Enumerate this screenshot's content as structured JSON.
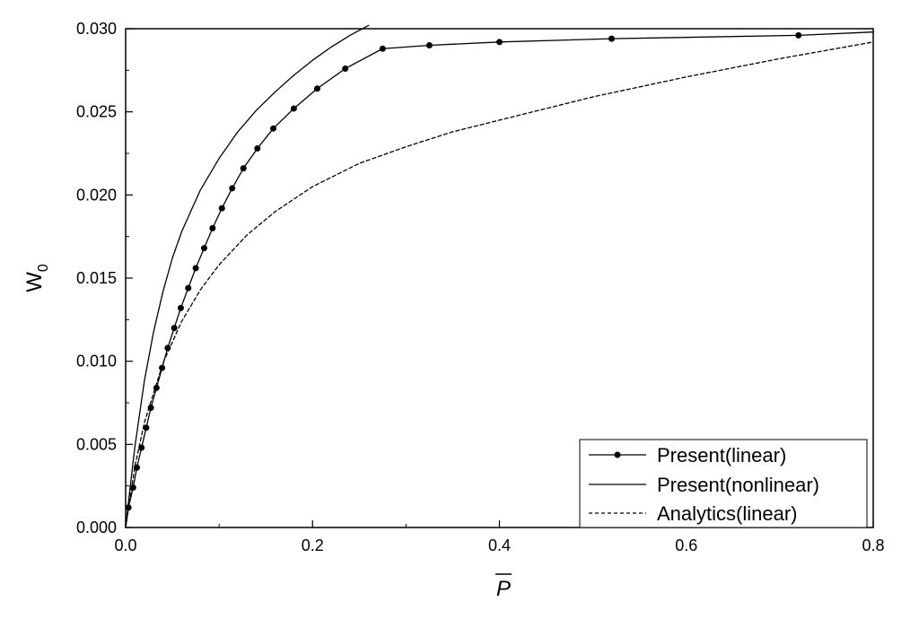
{
  "chart_data": {
    "type": "line",
    "title": "",
    "xlabel": "P",
    "xlabel_overbar": true,
    "ylabel": "W",
    "ylabel_subscript": "0",
    "xlim": [
      0.0,
      0.8
    ],
    "ylim": [
      0.0,
      0.03
    ],
    "x_ticks": [
      0.0,
      0.2,
      0.4,
      0.6,
      0.8
    ],
    "x_tick_labels": [
      "0.0",
      "0.2",
      "0.4",
      "0.6",
      "0.8"
    ],
    "y_ticks": [
      0.0,
      0.005,
      0.01,
      0.015,
      0.02,
      0.025,
      0.03
    ],
    "y_tick_labels": [
      "0.000",
      "0.005",
      "0.010",
      "0.015",
      "0.020",
      "0.025",
      "0.030"
    ],
    "grid": false,
    "legend_position": "bottom-right",
    "series": [
      {
        "name": "Present(linear)",
        "style": "solid-markers",
        "color": "#000000",
        "x": [
          0.0,
          0.003,
          0.008,
          0.012,
          0.017,
          0.022,
          0.027,
          0.033,
          0.039,
          0.045,
          0.052,
          0.059,
          0.067,
          0.075,
          0.084,
          0.093,
          0.103,
          0.114,
          0.126,
          0.141,
          0.158,
          0.18,
          0.205,
          0.235,
          0.275,
          0.325,
          0.4,
          0.52,
          0.72,
          0.8
        ],
        "y": [
          0.0,
          0.0012,
          0.0024,
          0.0036,
          0.0048,
          0.006,
          0.0072,
          0.0084,
          0.0096,
          0.0108,
          0.012,
          0.0132,
          0.0144,
          0.0156,
          0.0168,
          0.018,
          0.0192,
          0.0204,
          0.0216,
          0.0228,
          0.024,
          0.0252,
          0.0264,
          0.0276,
          0.0288,
          0.029,
          0.0292,
          0.0294,
          0.0296,
          0.0298
        ]
      },
      {
        "name": "Present(nonlinear)",
        "style": "solid",
        "color": "#000000",
        "x": [
          0.0,
          0.005,
          0.01,
          0.02,
          0.03,
          0.04,
          0.05,
          0.06,
          0.08,
          0.1,
          0.12,
          0.14,
          0.16,
          0.18,
          0.2,
          0.22,
          0.24,
          0.26
        ],
        "y": [
          0.0,
          0.0025,
          0.0049,
          0.0088,
          0.0118,
          0.0142,
          0.0162,
          0.0178,
          0.0203,
          0.0222,
          0.0238,
          0.0251,
          0.0262,
          0.0272,
          0.0281,
          0.0289,
          0.0296,
          0.0302
        ]
      },
      {
        "name": "Analytics(linear)",
        "style": "dashed",
        "color": "#000000",
        "x": [
          0.0,
          0.01,
          0.02,
          0.04,
          0.06,
          0.08,
          0.1,
          0.13,
          0.16,
          0.2,
          0.25,
          0.3,
          0.35,
          0.4,
          0.5,
          0.6,
          0.7,
          0.8
        ],
        "y": [
          0.0,
          0.0037,
          0.0063,
          0.0099,
          0.0124,
          0.0143,
          0.0158,
          0.0176,
          0.019,
          0.0205,
          0.0219,
          0.0229,
          0.0238,
          0.0245,
          0.0259,
          0.0271,
          0.0282,
          0.0292
        ]
      }
    ]
  }
}
